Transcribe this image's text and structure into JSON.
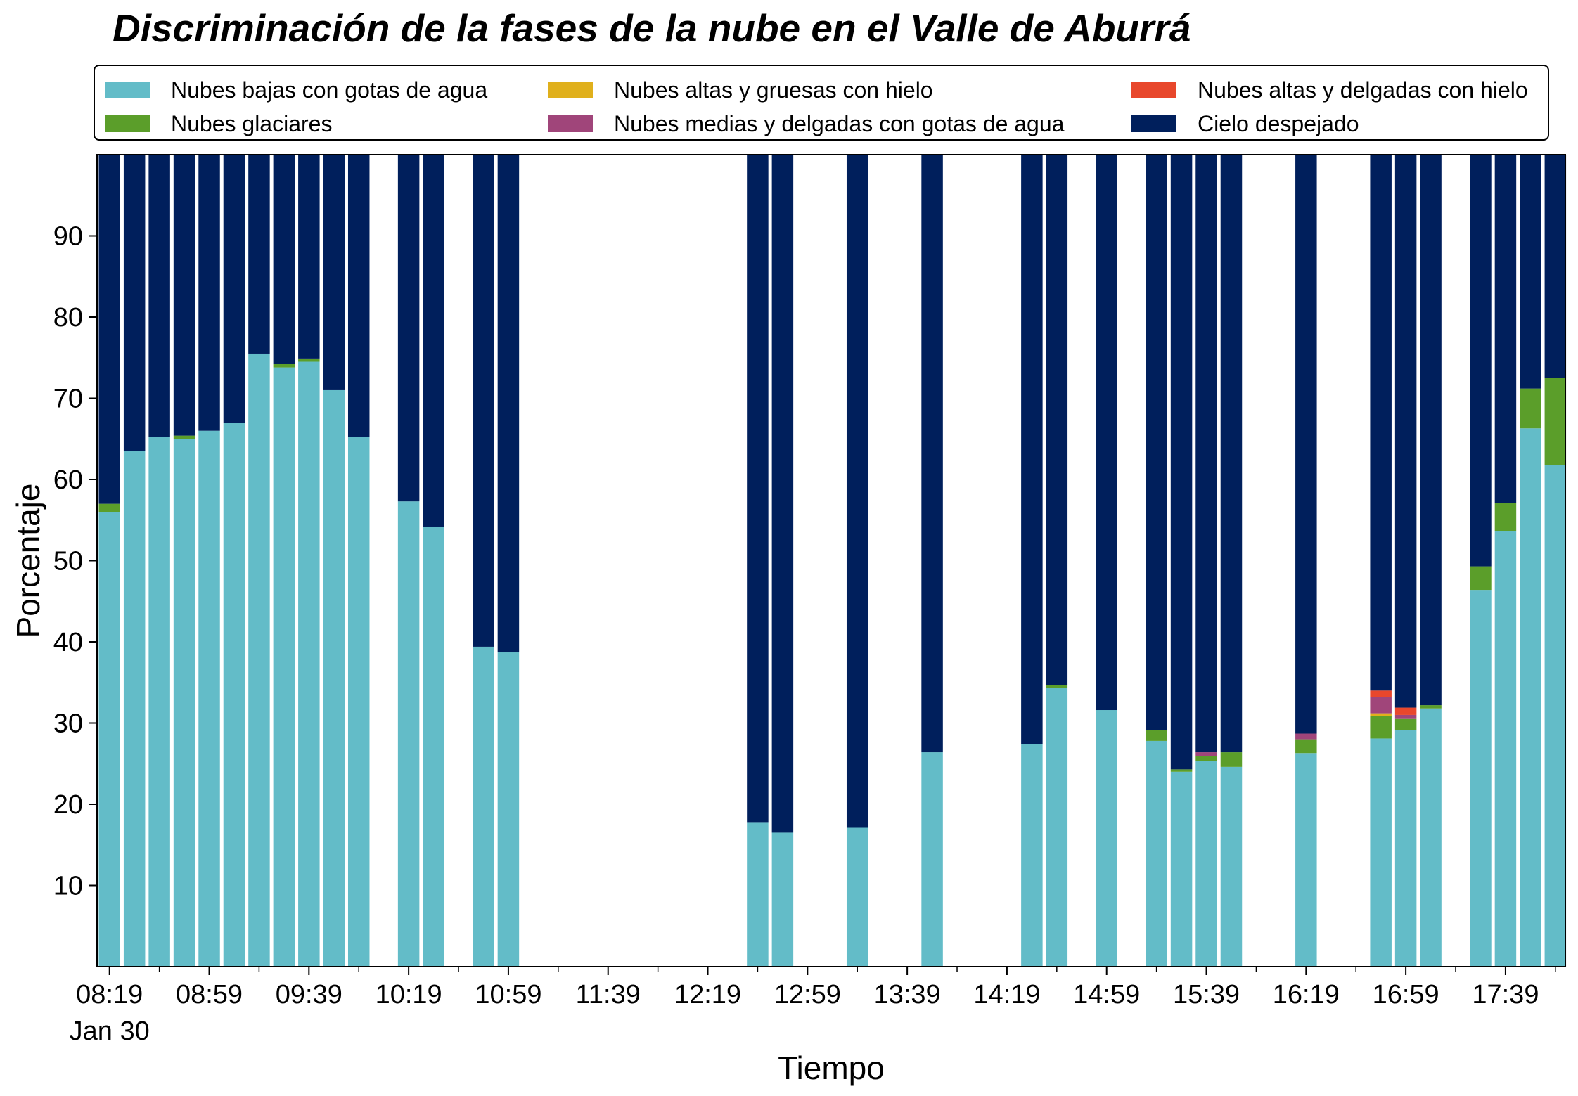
{
  "chart_data": {
    "type": "bar",
    "stacked": true,
    "title": "Discriminación de la fases de la nube en el Valle de Aburrá",
    "xlabel": "Tiempo",
    "ylabel": "Porcentaje",
    "ylim": [
      0,
      100
    ],
    "yticks": [
      10,
      20,
      30,
      40,
      50,
      60,
      70,
      80,
      90
    ],
    "x_range_minutes": [
      494,
      1083
    ],
    "xticks": [
      {
        "minute": 499,
        "label": "08:19",
        "sublabel": "Jan 30"
      },
      {
        "minute": 539,
        "label": "08:59"
      },
      {
        "minute": 579,
        "label": "09:39"
      },
      {
        "minute": 619,
        "label": "10:19"
      },
      {
        "minute": 659,
        "label": "10:59"
      },
      {
        "minute": 699,
        "label": "11:39"
      },
      {
        "minute": 739,
        "label": "12:19"
      },
      {
        "minute": 779,
        "label": "12:59"
      },
      {
        "minute": 819,
        "label": "13:39"
      },
      {
        "minute": 859,
        "label": "14:19"
      },
      {
        "minute": 899,
        "label": "14:59"
      },
      {
        "minute": 939,
        "label": "15:39"
      },
      {
        "minute": 979,
        "label": "16:19"
      },
      {
        "minute": 1019,
        "label": "16:59"
      },
      {
        "minute": 1059,
        "label": "17:39"
      }
    ],
    "minor_ticks": [
      519,
      559,
      599,
      639,
      679,
      719,
      759,
      799,
      839,
      879,
      919,
      959,
      999,
      1039,
      1079
    ],
    "legend_position": "top",
    "series": [
      {
        "name": "Nubes bajas con gotas de agua",
        "color": "#63bcc8"
      },
      {
        "name": "Nubes glaciares",
        "color": "#5b9e2a"
      },
      {
        "name": "Nubes altas y gruesas con hielo",
        "color": "#e0b01c"
      },
      {
        "name": "Nubes medias y delgadas con gotas de agua",
        "color": "#a0457a"
      },
      {
        "name": "Nubes altas y delgadas con hielo",
        "color": "#e8472c"
      },
      {
        "name": "Cielo despejado",
        "color": "#001f5c"
      }
    ],
    "bars": [
      {
        "time": "08:19",
        "values": [
          56,
          1,
          0,
          0,
          0,
          43
        ]
      },
      {
        "time": "08:29",
        "values": [
          63.5,
          0,
          0,
          0,
          0,
          36.5
        ]
      },
      {
        "time": "08:39",
        "values": [
          65.2,
          0,
          0,
          0,
          0,
          34.8
        ]
      },
      {
        "time": "08:49",
        "values": [
          65,
          0.4,
          0,
          0,
          0,
          34.6
        ]
      },
      {
        "time": "08:59",
        "values": [
          66,
          0,
          0,
          0,
          0,
          34
        ]
      },
      {
        "time": "09:09",
        "values": [
          67,
          0,
          0,
          0,
          0,
          33
        ]
      },
      {
        "time": "09:19",
        "values": [
          75.5,
          0,
          0,
          0,
          0,
          24.5
        ]
      },
      {
        "time": "09:29",
        "values": [
          73.8,
          0.4,
          0,
          0,
          0,
          25.8
        ]
      },
      {
        "time": "09:39",
        "values": [
          74.5,
          0.4,
          0,
          0,
          0,
          25.1
        ]
      },
      {
        "time": "09:49",
        "values": [
          71,
          0,
          0,
          0,
          0,
          29
        ]
      },
      {
        "time": "09:59",
        "values": [
          65.2,
          0,
          0,
          0,
          0,
          34.8
        ]
      },
      {
        "time": "10:19",
        "values": [
          57.3,
          0,
          0,
          0,
          0,
          42.7
        ]
      },
      {
        "time": "10:29",
        "values": [
          54.2,
          0,
          0,
          0,
          0,
          45.8
        ]
      },
      {
        "time": "10:49",
        "values": [
          39.4,
          0,
          0,
          0,
          0,
          60.6
        ]
      },
      {
        "time": "10:59",
        "values": [
          38.7,
          0,
          0,
          0,
          0,
          61.3
        ]
      },
      {
        "time": "12:39",
        "values": [
          17.8,
          0,
          0,
          0,
          0,
          82.2
        ]
      },
      {
        "time": "12:49",
        "values": [
          16.5,
          0,
          0,
          0,
          0,
          83.5
        ]
      },
      {
        "time": "13:19",
        "values": [
          17.1,
          0,
          0,
          0,
          0,
          82.9
        ]
      },
      {
        "time": "13:49",
        "values": [
          26.4,
          0,
          0,
          0,
          0,
          73.6
        ]
      },
      {
        "time": "14:29",
        "values": [
          27.4,
          0,
          0,
          0,
          0,
          72.6
        ]
      },
      {
        "time": "14:39",
        "values": [
          34.3,
          0.4,
          0,
          0,
          0,
          65.3
        ]
      },
      {
        "time": "14:59",
        "values": [
          31.6,
          0,
          0,
          0,
          0,
          68.4
        ]
      },
      {
        "time": "15:19",
        "values": [
          27.8,
          1.3,
          0,
          0,
          0,
          70.9
        ]
      },
      {
        "time": "15:29",
        "values": [
          24,
          0.3,
          0,
          0,
          0,
          75.7
        ]
      },
      {
        "time": "15:39",
        "values": [
          25.3,
          0.6,
          0,
          0.5,
          0,
          73.6
        ]
      },
      {
        "time": "15:49",
        "values": [
          24.6,
          1.8,
          0,
          0,
          0,
          73.6
        ]
      },
      {
        "time": "16:19",
        "values": [
          26.3,
          1.7,
          0,
          0.7,
          0,
          71.3
        ]
      },
      {
        "time": "16:49",
        "values": [
          28.1,
          2.8,
          0.3,
          2,
          0.8,
          66
        ]
      },
      {
        "time": "16:59",
        "values": [
          29.1,
          1.4,
          0,
          0.5,
          0.9,
          68.1
        ]
      },
      {
        "time": "17:09",
        "values": [
          31.8,
          0.4,
          0,
          0,
          0,
          67.8
        ]
      },
      {
        "time": "17:29",
        "values": [
          46.4,
          2.9,
          0,
          0,
          0,
          50.7
        ]
      },
      {
        "time": "17:39",
        "values": [
          53.6,
          3.5,
          0,
          0,
          0,
          42.9
        ]
      },
      {
        "time": "17:49",
        "values": [
          66.3,
          4.9,
          0,
          0,
          0,
          28.8
        ]
      },
      {
        "time": "17:59",
        "values": [
          61.8,
          10.7,
          0,
          0,
          0,
          27.5
        ]
      }
    ]
  }
}
